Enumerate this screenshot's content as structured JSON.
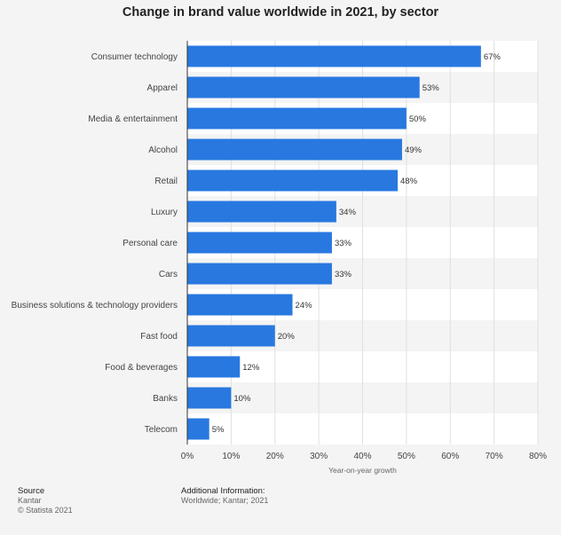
{
  "chart_data": {
    "type": "bar",
    "orientation": "horizontal",
    "title": "Change in brand value worldwide in 2021, by sector",
    "categories": [
      "Consumer technology",
      "Apparel",
      "Media & entertainment",
      "Alcohol",
      "Retail",
      "Luxury",
      "Personal care",
      "Cars",
      "Business solutions & technology providers",
      "Fast food",
      "Food & beverages",
      "Banks",
      "Telecom"
    ],
    "values": [
      67,
      53,
      50,
      49,
      48,
      34,
      33,
      33,
      24,
      20,
      12,
      10,
      5
    ],
    "value_labels": [
      "67%",
      "53%",
      "50%",
      "49%",
      "48%",
      "34%",
      "33%",
      "33%",
      "24%",
      "20%",
      "12%",
      "10%",
      "5%"
    ],
    "xlabel": "Year-on-year growth",
    "ylabel": "",
    "xlim": [
      0,
      80
    ],
    "xticks": [
      0,
      10,
      20,
      30,
      40,
      50,
      60,
      70,
      80
    ],
    "xtick_labels": [
      "0%",
      "10%",
      "20%",
      "30%",
      "40%",
      "50%",
      "60%",
      "70%",
      "80%"
    ],
    "grid": true,
    "bar_color": "#2878e0"
  },
  "footer": {
    "source_heading": "Source",
    "source_name": "Kantar",
    "copyright": "© Statista 2021",
    "info_heading": "Additional Information:",
    "info_text": "Worldwide; Kantar; 2021"
  }
}
